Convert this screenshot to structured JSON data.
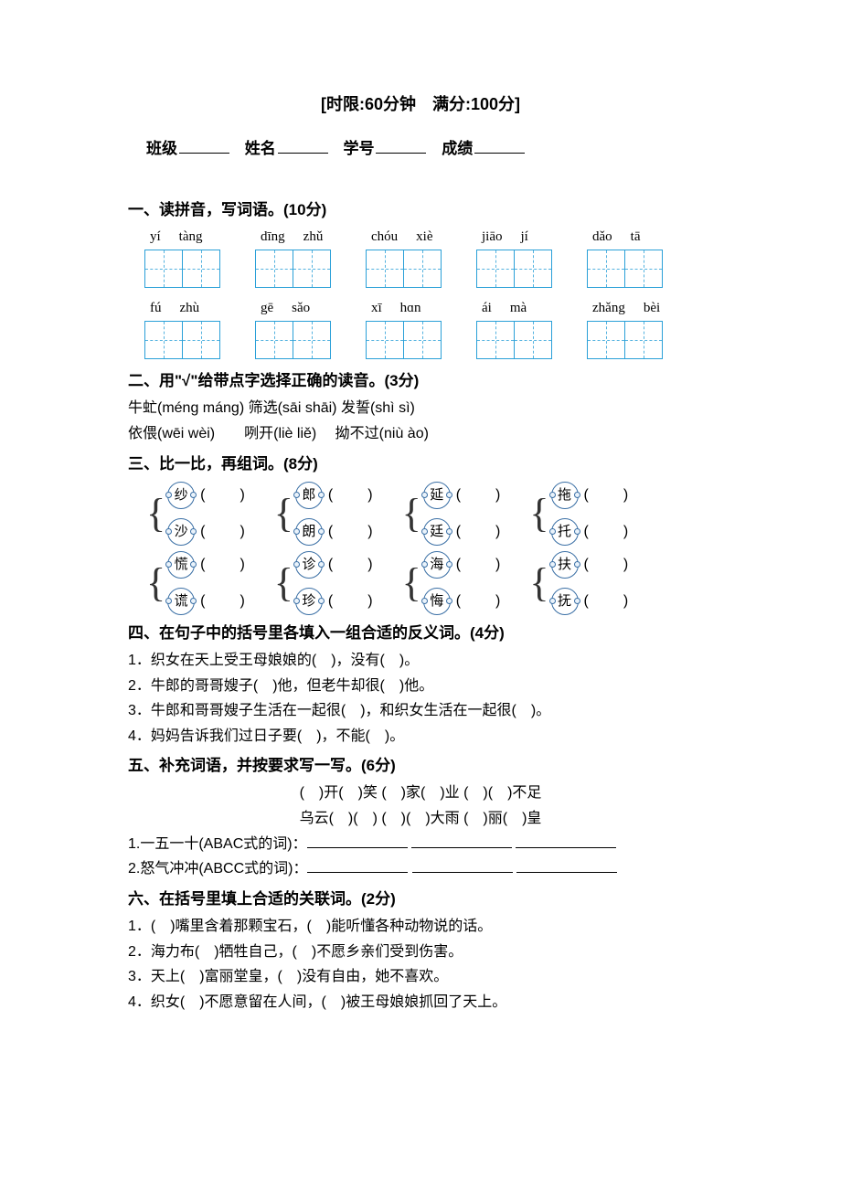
{
  "header": "[时限:60分钟　满分:100分]",
  "info": {
    "class": "班级",
    "name": "姓名",
    "sid": "学号",
    "score": "成绩"
  },
  "s1": {
    "title": "一、读拼音，写词语。(10分)",
    "row1": [
      [
        "yí",
        "tàng"
      ],
      [
        "dīng",
        "zhǔ"
      ],
      [
        "chóu",
        "xiè"
      ],
      [
        "jiāo",
        "jí"
      ],
      [
        "dǎo",
        "tā"
      ]
    ],
    "row2": [
      [
        "fú",
        "zhù"
      ],
      [
        "gē",
        "sǎo"
      ],
      [
        "xī",
        "hɑn"
      ],
      [
        "ái",
        "mà"
      ],
      [
        "zhǎng",
        "bèi"
      ]
    ]
  },
  "s2": {
    "title": "二、用\"√\"给带点字选择正确的读音。(3分)",
    "line1": "牛虻(méng máng)  筛选(sāi shāi)  发誓(shì sì)",
    "line2": "依偎(wēi wèi)　　咧开(liè liě)　  拗不过(niù ào)"
  },
  "s3": {
    "title": "三、比一比，再组词。(8分)",
    "rows": [
      [
        [
          "纱",
          "沙"
        ],
        [
          "郎",
          "朗"
        ],
        [
          "延",
          "廷"
        ],
        [
          "拖",
          "托"
        ]
      ],
      [
        [
          "慌",
          "谎"
        ],
        [
          "诊",
          "珍"
        ],
        [
          "海",
          "悔"
        ],
        [
          "扶",
          "抚"
        ]
      ]
    ]
  },
  "s4": {
    "title": "四、在句子中的括号里各填入一组合适的反义词。(4分)",
    "items": [
      "1．织女在天上受王母娘娘的(　)，没有(　)。",
      "2．牛郎的哥哥嫂子(　)他，但老牛却很(　)他。",
      "3．牛郎和哥哥嫂子生活在一起很(　)，和织女生活在一起很(　)。",
      "4．妈妈告诉我们过日子要(　)，不能(　)。"
    ]
  },
  "s5": {
    "title": "五、补充词语，并按要求写一写。(6分)",
    "c1": "(　)开(　)笑 (　)家(　)业 (　)(　)不足",
    "c2": "乌云(　)(　) (　)(　)大雨  (　)丽(　)皇",
    "l1": " 1.一五一十(ABAC式的词)：",
    "l2": " 2.怒气冲冲(ABCC式的词)："
  },
  "s6": {
    "title": "六、在括号里填上合适的关联词。(2分)",
    "items": [
      "1．(　)嘴里含着那颗宝石，(　)能听懂各种动物说的话。",
      "2．海力布(　)牺牲自己，(　)不愿乡亲们受到伤害。",
      "3．天上(　)富丽堂皇，(　)没有自由，她不喜欢。",
      "4．织女(　)不愿意留在人间，(　)被王母娘娘抓回了天上。"
    ]
  }
}
